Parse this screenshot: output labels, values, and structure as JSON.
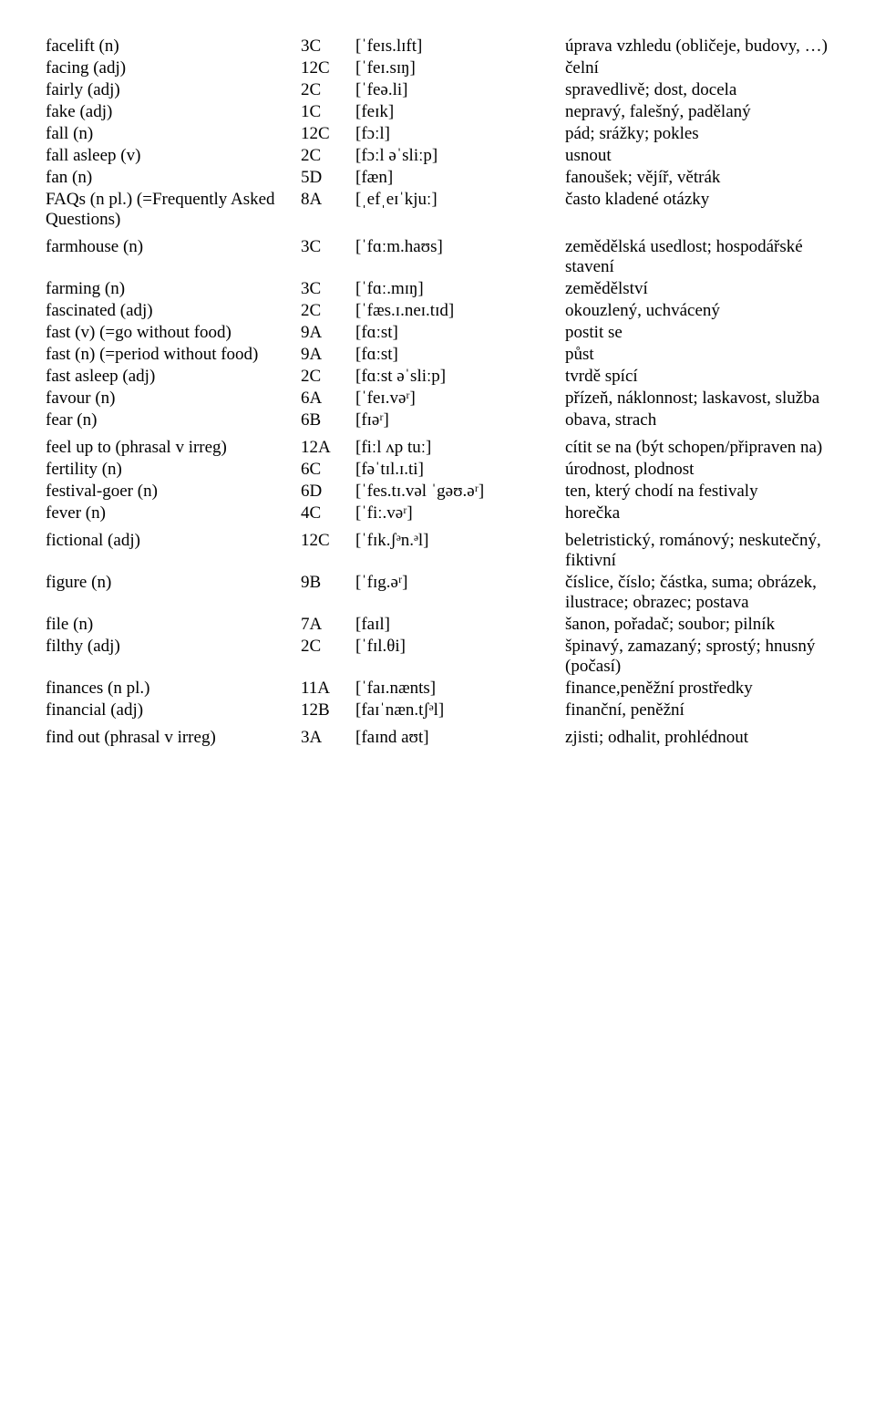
{
  "entries": [
    {
      "word": "facelift  (n)",
      "unit": "3C",
      "ipa": "[ˈfeɪs.lɪft]",
      "def": "úprava vzhledu (obličeje, budovy, …)"
    },
    {
      "word": "facing   (adj)",
      "unit": "12C",
      "ipa": "[ˈfeɪ.sɪŋ]",
      "def": "čelní"
    },
    {
      "word": "fairly   (adj)",
      "unit": "2C",
      "ipa": "[ˈfeə.li]",
      "def": "spravedlivě; dost, docela"
    },
    {
      "word": "fake   (adj)",
      "unit": "1C",
      "ipa": "[feɪk]",
      "def": "nepravý, falešný, padělaný"
    },
    {
      "word": "fall   (n)",
      "unit": "12C",
      "ipa": "[fɔːl]",
      "def": "pád; srážky; pokles"
    },
    {
      "word": "fall asleep (v)",
      "unit": "2C",
      "ipa": "[fɔːl əˈsliːp]",
      "def": "usnout"
    },
    {
      "word": "fan   (n)",
      "unit": "5D",
      "ipa": "[fæn]",
      "def": "fanoušek; vějíř, větrák"
    },
    {
      "word": "FAQs (n pl.) (=Frequently Asked Questions)",
      "unit": "8A",
      "ipa": "[ˌefˌeɪˈkjuː]",
      "def": "často kladené otázky",
      "spacerAfter": true
    },
    {
      "word": "farmhouse   (n)",
      "unit": "3C",
      "ipa": "[ˈfɑːm.haʊs]",
      "def": "zemědělská usedlost; hospodářské stavení"
    },
    {
      "word": "farming   (n)",
      "unit": "3C",
      "ipa": "[ˈfɑː.mɪŋ]",
      "def": "zemědělství"
    },
    {
      "word": "fascinated   (adj)",
      "unit": "2C",
      "ipa": "[ˈfæs.ɪ.neɪ.tɪd]",
      "def": "okouzlený, uchvácený"
    },
    {
      "word": "fast  (v)   (=go without food)",
      "unit": "9A",
      "ipa": "[fɑːst]",
      "def": "postit se"
    },
    {
      "word": "fast (n) (=period  without food)",
      "unit": "9A",
      "ipa": "[fɑːst]",
      "def": "půst"
    },
    {
      "word": "fast asleep   (adj)",
      "unit": "2C",
      "ipa": "[fɑːst əˈsliːp]",
      "def": "tvrdě spící"
    },
    {
      "word": "favour   (n)",
      "unit": "6A",
      "ipa": "[ˈfeɪ.vəʳ]",
      "def": "přízeň, náklonnost; laskavost, služba"
    },
    {
      "word": "fear   (n)",
      "unit": "6B",
      "ipa": "[fɪəʳ]",
      "def": "obava, strach",
      "spacerAfter": true
    },
    {
      "word": "feel up to (phrasal v irreg)",
      "unit": "12A",
      "ipa": "[fiːl ʌp tuː]",
      "def": "cítit se na (být schopen/připraven na)"
    },
    {
      "word": "fertility   (n)",
      "unit": "6C",
      "ipa": "[fəˈtɪl.ɪ.ti]",
      "def": "úrodnost, plodnost"
    },
    {
      "word": "festival-goer   (n)",
      "unit": "6D",
      "ipa": "[ˈfes.tɪ.vəl ˈgəʊ.əʳ]",
      "def": "ten, který chodí na festivaly"
    },
    {
      "word": "fever (n)",
      "unit": "4C",
      "ipa": "[ˈfiː.vəʳ]",
      "def": "horečka",
      "spacerAfter": true
    },
    {
      "word": "fictional   (adj)",
      "unit": "12C",
      "ipa": "[ˈfɪk.ʃᵊn.ᵊl]",
      "def": "beletristický, románový; neskutečný, fiktivní"
    },
    {
      "word": "figure   (n)",
      "unit": "9B",
      "ipa": "[ˈfɪg.əʳ]",
      "def": "číslice, číslo; částka, suma; obrázek, ilustrace; obrazec; postava"
    },
    {
      "word": "file   (n)",
      "unit": "7A",
      "ipa": "[faɪl]",
      "def": "šanon, pořadač; soubor; pilník"
    },
    {
      "word": "filthy (adj)",
      "unit": "2C",
      "ipa": "[ˈfɪl.θi]",
      "def": "špinavý, zamazaný; sprostý; hnusný (počasí)"
    },
    {
      "word": "finances   (n   pl.)",
      "unit": "11A",
      "ipa": "[ˈfaɪ.nænts]",
      "def": "finance,peněžní prostředky"
    },
    {
      "word": "financial   (adj)",
      "unit": "12B",
      "ipa": "[faɪˈnæn.tʃᵊl]",
      "def": "finanční, peněžní",
      "spacerAfter": true
    },
    {
      "word": "find out   (phrasal  v  irreg)",
      "unit": "3A",
      "ipa": "[faɪnd aʊt]",
      "def": "zjisti; odhalit, prohlédnout"
    }
  ]
}
